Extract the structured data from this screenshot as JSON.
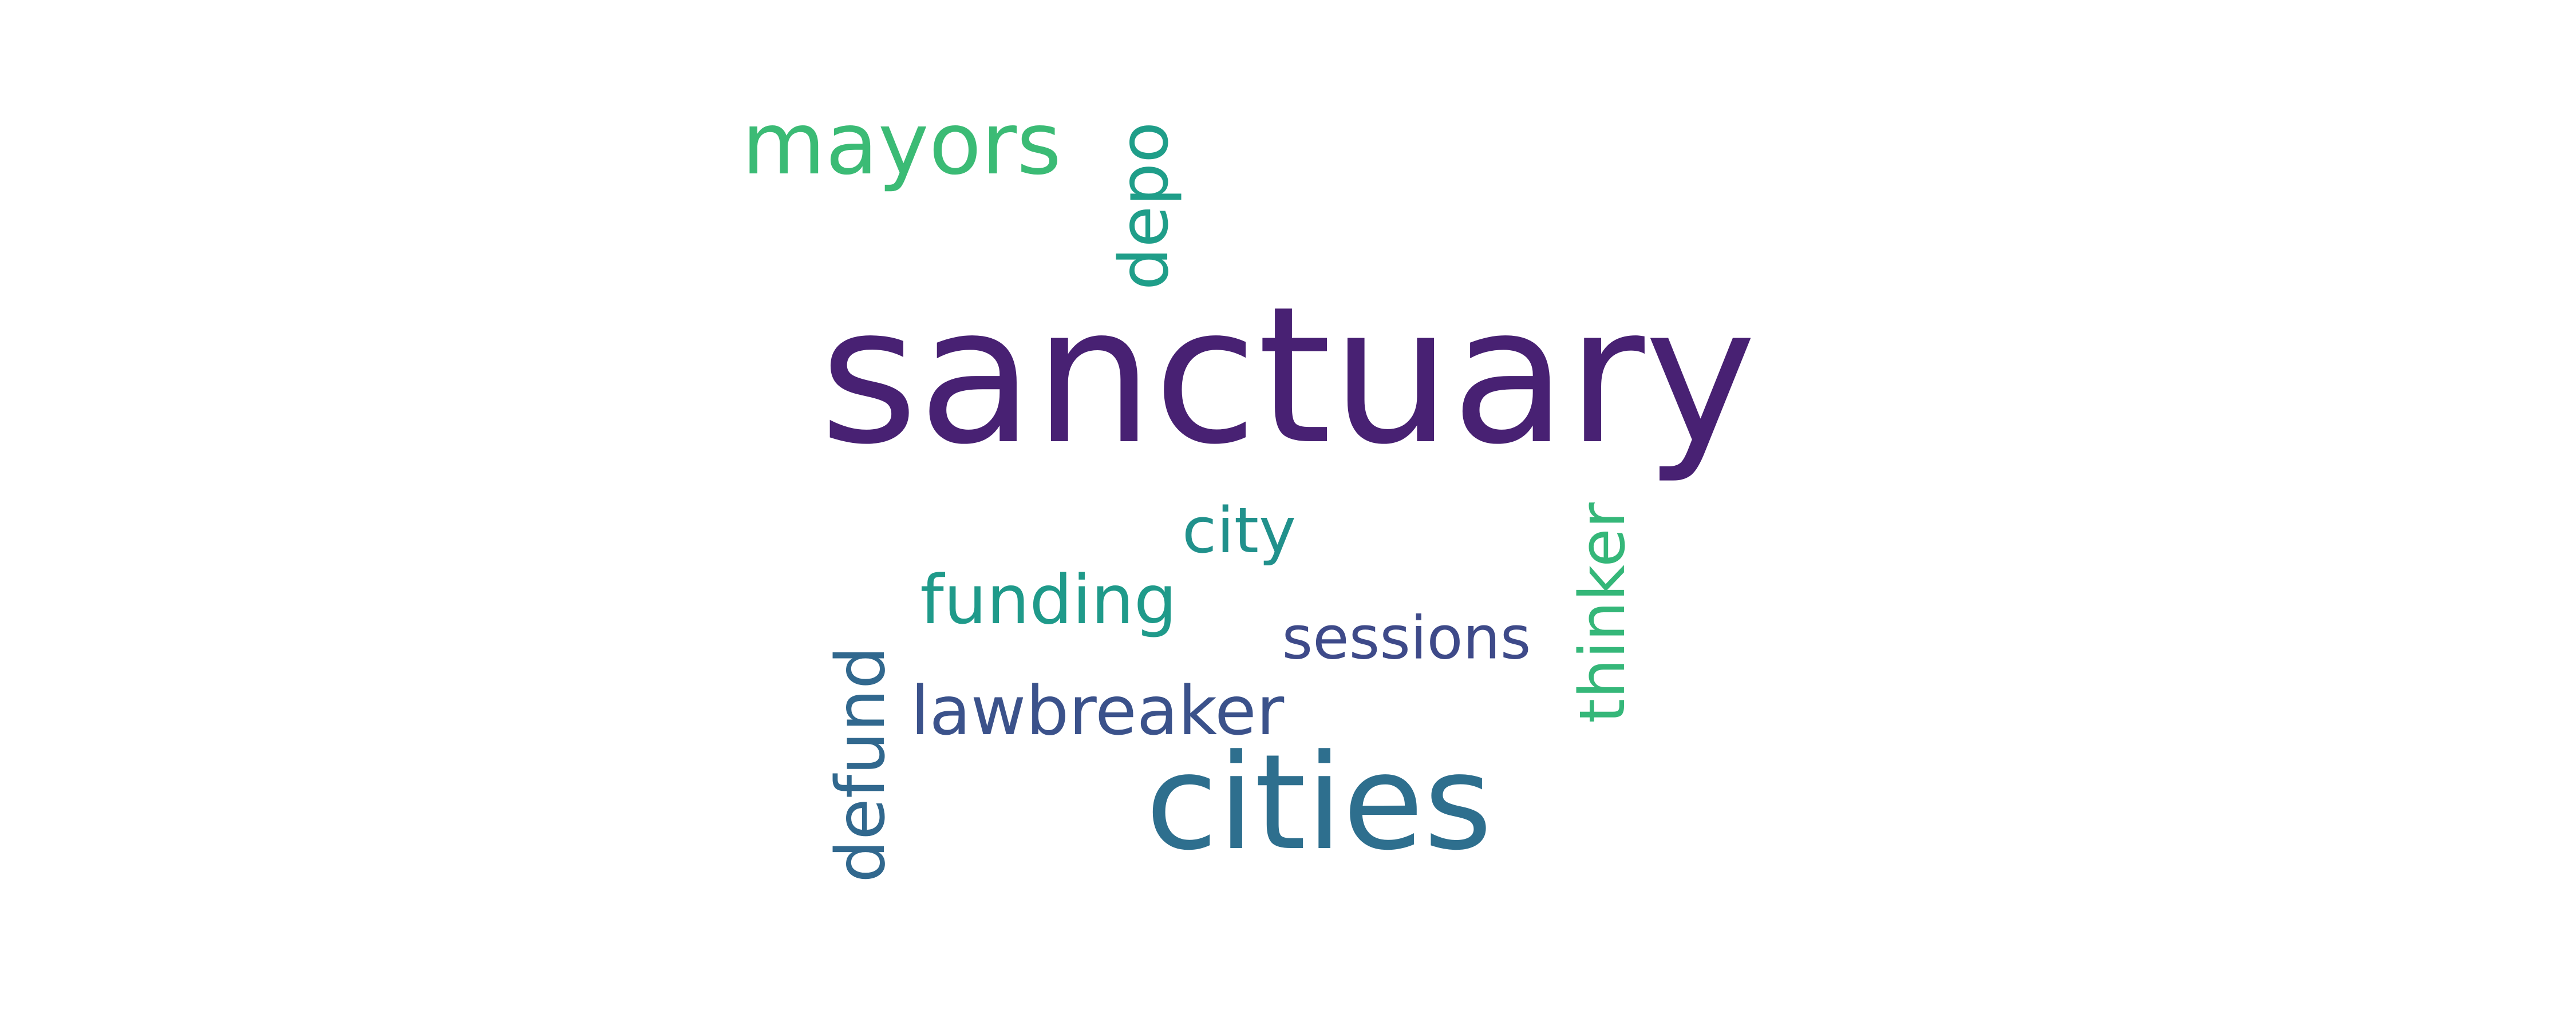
{
  "words": [
    {
      "text": "sanctuary",
      "color": "#482173"
    },
    {
      "text": "cities",
      "color": "#2e6f8e"
    },
    {
      "text": "mayors",
      "color": "#3bbb75"
    },
    {
      "text": "depo",
      "color": "#1f9e89"
    },
    {
      "text": "city",
      "color": "#21918c"
    },
    {
      "text": "funding",
      "color": "#1f9a8a"
    },
    {
      "text": "sessions",
      "color": "#3e4a89"
    },
    {
      "text": "lawbreaker",
      "color": "#3b528b"
    },
    {
      "text": "thinker",
      "color": "#35b779"
    },
    {
      "text": "defund",
      "color": "#31688e"
    }
  ]
}
